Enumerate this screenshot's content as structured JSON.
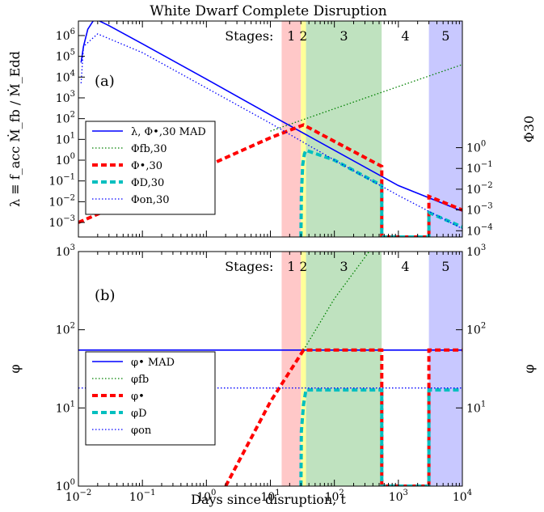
{
  "chart_data": {
    "type": "line",
    "title": "White Dwarf Complete Disruption",
    "xlabel": "Days since disruption,  t",
    "xscale": "log",
    "xlim": [
      0.01,
      10000
    ],
    "x_ticks": [
      {
        "value": 0.01,
        "base": "10",
        "exp": "−2"
      },
      {
        "value": 0.1,
        "base": "10",
        "exp": "−1"
      },
      {
        "value": 1,
        "base": "10",
        "exp": "0"
      },
      {
        "value": 10,
        "base": "10",
        "exp": "1"
      },
      {
        "value": 100,
        "base": "10",
        "exp": "2"
      },
      {
        "value": 1000,
        "base": "10",
        "exp": "3"
      },
      {
        "value": 10000,
        "base": "10",
        "exp": "4"
      }
    ],
    "stages": {
      "label": "Stages:",
      "regions": [
        {
          "name": "1",
          "x0": 15,
          "x1": 30,
          "color": "#ffc8c8"
        },
        {
          "name": "2",
          "x0": 30,
          "x1": 36,
          "color": "#ffff99"
        },
        {
          "name": "3",
          "x0": 36,
          "x1": 550,
          "color": "#bfe2bf"
        },
        {
          "name": "4",
          "x0": 550,
          "x1": 3000,
          "color": "#ffffff"
        },
        {
          "name": "5",
          "x0": 3000,
          "x1": 10000,
          "color": "#c8c8ff"
        }
      ]
    },
    "panels": [
      {
        "id": "a",
        "tag": "(a)",
        "ylabel_left": "λ ≡ f_acc Ṁ_fb / Ṁ_Edd",
        "ylabel_right": "Φ30",
        "yscale": "log",
        "ylim": [
          0.0002,
          5000000
        ],
        "y_ticks_left": [
          {
            "value": 0.001,
            "base": "10",
            "exp": "−3"
          },
          {
            "value": 0.01,
            "base": "10",
            "exp": "−2"
          },
          {
            "value": 0.1,
            "base": "10",
            "exp": "−1"
          },
          {
            "value": 1,
            "base": "10",
            "exp": "0"
          },
          {
            "value": 10,
            "base": "10",
            "exp": "1"
          },
          {
            "value": 100,
            "base": "10",
            "exp": "2"
          },
          {
            "value": 1000,
            "base": "10",
            "exp": "3"
          },
          {
            "value": 10000,
            "base": "10",
            "exp": "4"
          },
          {
            "value": 100000,
            "base": "10",
            "exp": "5"
          },
          {
            "value": 1000000,
            "base": "10",
            "exp": "6"
          }
        ],
        "y_ticks_right": [
          {
            "value": 0.0004,
            "base": "10",
            "exp": "−4"
          },
          {
            "value": 0.004,
            "base": "10",
            "exp": "−3"
          },
          {
            "value": 0.04,
            "base": "10",
            "exp": "−2"
          },
          {
            "value": 0.4,
            "base": "10",
            "exp": "−1"
          },
          {
            "value": 4,
            "base": "10",
            "exp": "0"
          }
        ],
        "legend": {
          "placement": "lower-left"
        },
        "series": [
          {
            "name": "λ,  Φ•,30 MAD",
            "color": "#0000ff",
            "style": "solid",
            "x": [
              0.011,
              0.012,
              0.014,
              0.017,
              0.02,
              0.03,
              0.1,
              1,
              10,
              100,
              1000,
              10000
            ],
            "y": [
              50000,
              300000,
              2000000,
              5000000,
              5500000,
              3000000,
              400000,
              8000,
              150,
              3,
              0.06,
              0.0035
            ]
          },
          {
            "name": "Φfb,30",
            "color": "#008000",
            "style": "dotted",
            "x": [
              10,
              100,
              1000,
              10000
            ],
            "y": [
              25,
              300,
              3500,
              40000
            ]
          },
          {
            "name": "Φ•,30",
            "color": "#ff0000",
            "style": "dashed",
            "x": [
              0.01,
              0.1,
              1,
              10,
              33,
              100,
              550,
              550,
              3000,
              3000,
              10000
            ],
            "y": [
              0.001,
              0.022,
              0.5,
              12,
              50,
              8,
              0.5,
              0.0002,
              0.0002,
              0.018,
              0.004
            ]
          },
          {
            "name": "ΦD,30",
            "color": "#00bfbf",
            "style": "dashed",
            "x": [
              30,
              30.5,
              32,
              34,
              36,
              100,
              550,
              550,
              3000,
              3000,
              10000
            ],
            "y": [
              0.0002,
              0.02,
              0.6,
              2,
              3,
              1,
              0.06,
              0.0002,
              0.0002,
              0.003,
              0.0006
            ]
          },
          {
            "name": "Φon,30",
            "color": "#0000ff",
            "style": "dotted",
            "x": [
              0.011,
              0.012,
              0.02,
              0.1,
              1,
              10,
              100,
              1000,
              10000
            ],
            "y": [
              5000,
              300000,
              1200000,
              150000,
              3000,
              60,
              1,
              0.02,
              0.0005
            ]
          }
        ]
      },
      {
        "id": "b",
        "tag": "(b)",
        "ylabel_left": "φ",
        "ylabel_right": "φ",
        "yscale": "log",
        "ylim": [
          1,
          1000
        ],
        "y_ticks_left": [
          {
            "value": 1,
            "base": "10",
            "exp": "0"
          },
          {
            "value": 10,
            "base": "10",
            "exp": "1"
          },
          {
            "value": 100,
            "base": "10",
            "exp": "2"
          },
          {
            "value": 1000,
            "base": "10",
            "exp": "3"
          }
        ],
        "y_ticks_right": [
          {
            "value": 10,
            "base": "10",
            "exp": "1"
          },
          {
            "value": 100,
            "base": "10",
            "exp": "2"
          },
          {
            "value": 1000,
            "base": "10",
            "exp": "3"
          }
        ],
        "legend": {
          "placement": "lower-left"
        },
        "series": [
          {
            "name": "φ• MAD",
            "color": "#0000ff",
            "style": "solid",
            "x": [
              0.01,
              10000
            ],
            "y": [
              55,
              55
            ]
          },
          {
            "name": "φfb",
            "color": "#008000",
            "style": "dotted",
            "x": [
              33,
              100,
              350
            ],
            "y": [
              55,
              250,
              1000
            ]
          },
          {
            "name": "φ•",
            "color": "#ff0000",
            "style": "dashed",
            "x": [
              2,
              10,
              33,
              550,
              550,
              3000,
              3000,
              10000
            ],
            "y": [
              1,
              12,
              55,
              55,
              1,
              1,
              55,
              55
            ]
          },
          {
            "name": "φD",
            "color": "#00bfbf",
            "style": "dashed",
            "x": [
              30,
              30.5,
              33,
              36,
              550,
              550,
              3000,
              3000,
              10000
            ],
            "y": [
              1,
              5,
              11,
              17,
              17,
              1,
              1,
              17,
              17
            ]
          },
          {
            "name": "φon",
            "color": "#0000ff",
            "style": "dotted",
            "x": [
              0.01,
              10000
            ],
            "y": [
              18,
              18
            ]
          }
        ]
      }
    ]
  }
}
